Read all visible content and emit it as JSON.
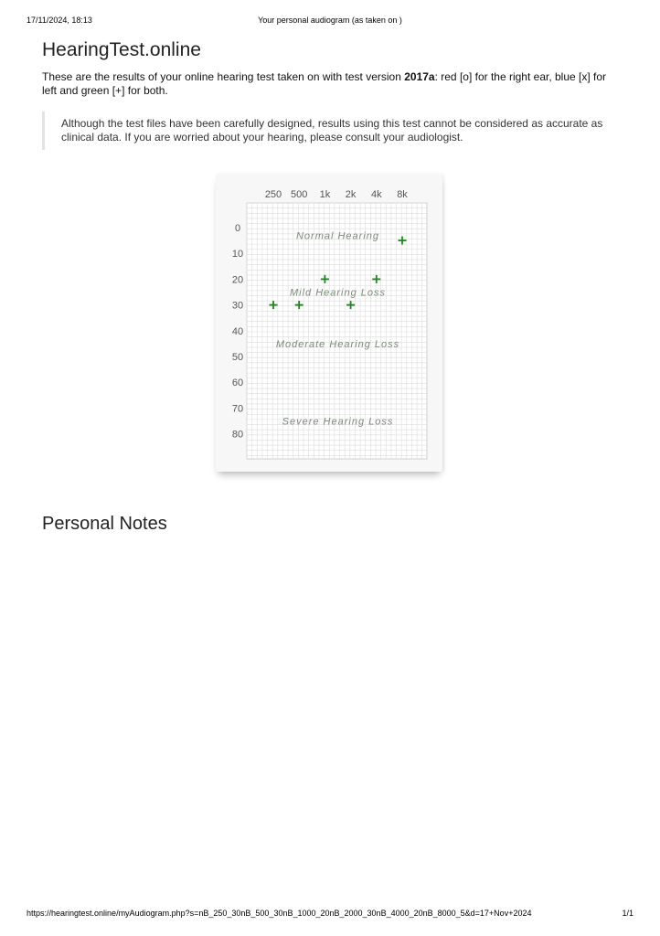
{
  "print_header": {
    "datetime": "17/11/2024, 18:13",
    "title": "Your personal audiogram (as taken on )"
  },
  "site_title": "HearingTest.online",
  "intro": {
    "before_version": "These are the results of your online hearing test taken on with test version ",
    "version": "2017a",
    "after_version": ": red [o] for the right ear, blue [x] for left and green [+] for both."
  },
  "disclaimer": "Although the test files have been carefully designed, results using this test cannot be considered as accurate as clinical data. If you are worried about your hearing, please consult your audiologist.",
  "chart_data": {
    "type": "scatter",
    "x_tick_labels": [
      "250",
      "500",
      "1k",
      "2k",
      "4k",
      "8k"
    ],
    "x": [
      250,
      500,
      1000,
      2000,
      4000,
      8000
    ],
    "y_tick_labels": [
      "0",
      "10",
      "20",
      "30",
      "40",
      "50",
      "60",
      "70",
      "80"
    ],
    "ylim": [
      -10,
      90
    ],
    "y_inverted": true,
    "x_scale": "log",
    "grid": true,
    "series": [
      {
        "marker": "+",
        "color": "#1a8a1a",
        "points": [
          {
            "x": 250,
            "y": 30
          },
          {
            "x": 500,
            "y": 30
          },
          {
            "x": 1000,
            "y": 20
          },
          {
            "x": 2000,
            "y": 30
          },
          {
            "x": 4000,
            "y": 20
          },
          {
            "x": 8000,
            "y": 5
          }
        ]
      }
    ],
    "zones": [
      {
        "label": "Normal Hearing",
        "y": 3
      },
      {
        "label": "Mild Hearing Loss",
        "y": 25
      },
      {
        "label": "Moderate Hearing Loss",
        "y": 45
      },
      {
        "label": "Severe Hearing Loss",
        "y": 75
      }
    ]
  },
  "notes_heading": "Personal Notes",
  "print_footer": {
    "url": "https://hearingtest.online/myAudiogram.php?s=nB_250_30nB_500_30nB_1000_20nB_2000_30nB_4000_20nB_8000_5&d=17+Nov+2024",
    "pages": "1/1"
  }
}
